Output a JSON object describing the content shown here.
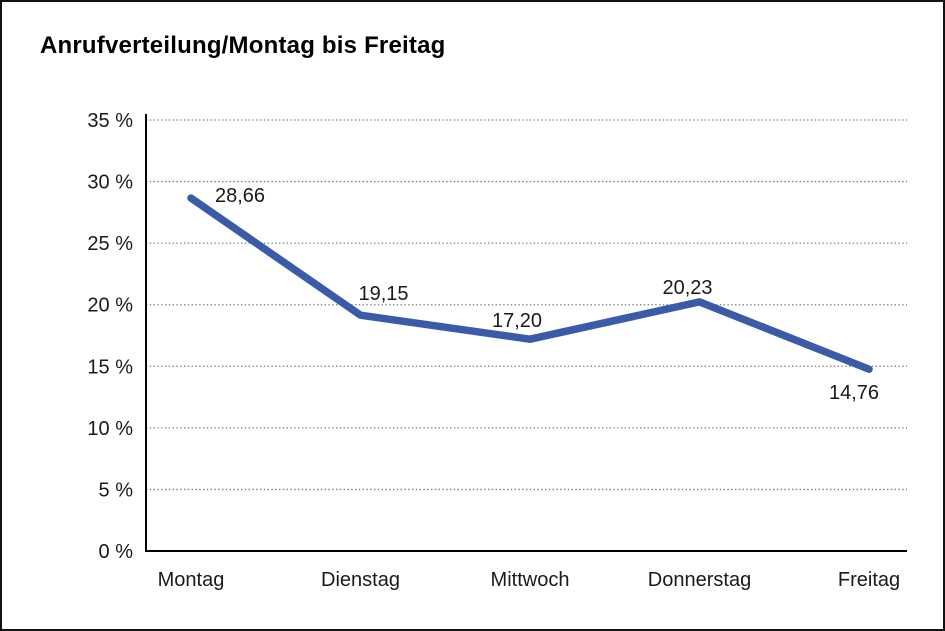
{
  "page": {
    "background": "#ffffff",
    "frame_border_color": "#111111"
  },
  "chart": {
    "title": "Anrufverteilung/Montag bis Freitag"
  },
  "chart_data": {
    "type": "line",
    "title": "Anrufverteilung/Montag bis Freitag",
    "categories": [
      "Montag",
      "Dienstag",
      "Mittwoch",
      "Donnerstag",
      "Freitag"
    ],
    "values": [
      28.66,
      19.15,
      17.2,
      20.23,
      14.76
    ],
    "value_labels": [
      "28,66",
      "19,15",
      "17,20",
      "20,23",
      "14,76"
    ],
    "xlabel": "",
    "ylabel": "",
    "ylim": [
      0,
      35
    ],
    "ytick_step": 5,
    "ytick_labels": [
      "0 %",
      "5 %",
      "10 %",
      "15 %",
      "20 %",
      "25 %",
      "30 %",
      "35 %"
    ],
    "grid": "horizontal-dotted",
    "legend": "none",
    "colors": {
      "line": "#3A5BA8",
      "grid": "#7a7a7a",
      "axis": "#000000",
      "text": "#1a1a1a"
    }
  }
}
